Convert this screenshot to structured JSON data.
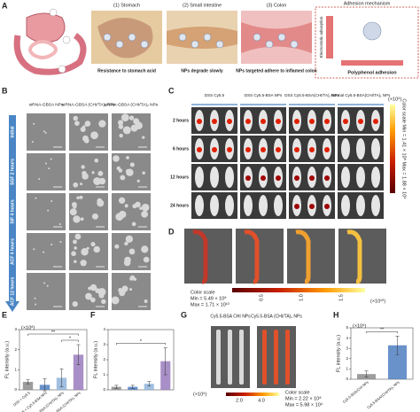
{
  "figure": {
    "A": {
      "label": "A",
      "steps": [
        {
          "title": "(1) Stomach",
          "caption": "Resistance to stomach acid"
        },
        {
          "title": "(2) Small intestine",
          "caption": "NPs degrade slowly"
        },
        {
          "title": "(3) Colon",
          "caption": "NPs targeted adhere to inflamed colon"
        }
      ],
      "mechanism": {
        "title": "Adhesion mechanism",
        "top": "Electrostatic adsorption",
        "bottom": "Polyphenol adhesion"
      }
    },
    "B": {
      "label": "B",
      "columns": [
        "siRNA-GBSA NPs",
        "siRNA-GBSA (CHI/TA)₁ NPs",
        "siRNA-GBSA (CHI/TA)₂ NPs"
      ],
      "rows": [
        "Initial",
        "SGF 2 hours",
        "SIF 4 hours",
        "ACF 4 hours",
        "ACF 12 hours"
      ]
    },
    "C": {
      "label": "C",
      "groups": [
        "DSS Cy5.5",
        "DSS Cy5.5-BSA NPs",
        "DSS Cy5.5-BSA(CHI/TA)₁ NPs",
        "Normal Cy5.5-BSA(CHI/TA)₁ NPs"
      ],
      "rows": [
        "2 hours",
        "6 hours",
        "12 hours",
        "24 hours"
      ],
      "scale": {
        "unit": "(×10⁹)",
        "text": "Color scale Min = 1.41 × 10⁸ Max = 1.88 × 10⁹"
      }
    },
    "D": {
      "label": "D",
      "scale_title": "Color scale",
      "min": "Min = 5.49 × 10⁸",
      "max": "Max = 1.71 × 10¹⁰",
      "ticks": [
        "0.5",
        "1.0",
        "1.5"
      ],
      "unit": "(×10¹⁰)"
    },
    "G": {
      "label": "G",
      "titles": [
        "Cy5.5-BSA CHI NPs",
        "Cy5.5-BSA (CHI/TA)₁ NPs"
      ],
      "scale_title": "Color scale",
      "min": "Min = 2.22 × 10⁸",
      "max": "Max = 5.98 × 10⁹",
      "ticks": [
        "2.0",
        "4.0"
      ],
      "unit": "(×10⁹)"
    }
  },
  "chart_data": [
    {
      "type": "bar",
      "label": "E",
      "y_label": "FL intensity (a.u.)",
      "y_unit": "(×10⁸)",
      "categories": [
        "DSS + Cy5.5",
        "DSS + Cy5.5-BSA NPs",
        "Normal + Cy5.5-BSA (CHI/TA)₁ NPs",
        "DSS + Cy5.5-BSA (CHI/TA)₁ NPs"
      ],
      "values": [
        0.4,
        0.25,
        0.6,
        1.75
      ],
      "errors": [
        0.1,
        0.3,
        0.45,
        0.5
      ],
      "colors": [
        "#8c8c8c",
        "#4f7fc1",
        "#8fb4dc",
        "#9a7bbd"
      ],
      "ylim": [
        0,
        3
      ],
      "yticks": [
        0,
        1,
        2,
        3
      ],
      "annotations": [
        "**",
        "*"
      ]
    },
    {
      "type": "bar",
      "label": "F",
      "y_label": "FL intensity (a.u.)",
      "values": [
        0.2,
        0.2,
        0.4,
        1.9
      ],
      "errors": [
        0.1,
        0.1,
        0.15,
        0.9
      ],
      "colors": [
        "#8c8c8c",
        "#4f7fc1",
        "#8fb4dc",
        "#9a7bbd"
      ],
      "ylim": [
        0,
        4
      ],
      "yticks": [
        0,
        1,
        2,
        3,
        4
      ],
      "annotations": [
        "*"
      ]
    },
    {
      "type": "bar",
      "label": "H",
      "y_label": "FL intensity (a.u.)",
      "y_unit": "(×10⁹)",
      "categories": [
        "Cy5.5-BSA/CHI NPs",
        "Cy5.5-BSA/(CHI/TA)₁ NPs"
      ],
      "values": [
        0.5,
        3.3
      ],
      "errors": [
        0.3,
        0.9
      ],
      "colors": [
        "#8c8c8c",
        "#4f7fc1"
      ],
      "ylim": [
        0,
        5
      ],
      "yticks": [
        0,
        1,
        2,
        3,
        4,
        5
      ],
      "annotations": [
        "**"
      ]
    }
  ]
}
